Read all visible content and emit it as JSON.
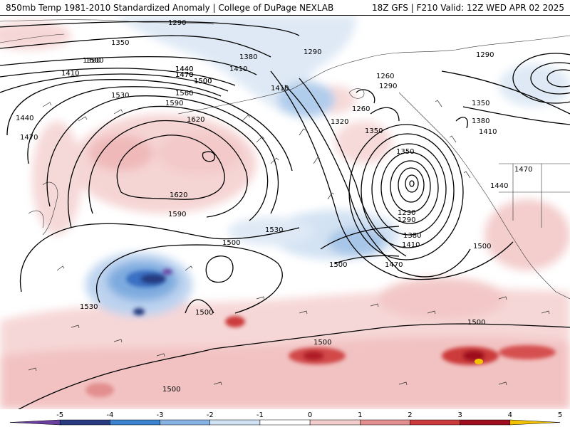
{
  "header": {
    "title_left": "850mb Temp 1981-2010 Standardized Anomaly | College of DuPage NEXLAB",
    "title_right": "18Z GFS | F210 Valid: 12Z WED APR 02 2025"
  },
  "contour_labels": [
    "1290",
    "1350",
    "1380",
    "1410",
    "1440",
    "1470",
    "1500",
    "1530",
    "1560",
    "1590",
    "1620",
    "1410",
    "1440",
    "1470",
    "1500",
    "1380",
    "1410",
    "1290",
    "1260",
    "1290",
    "1260",
    "1320",
    "1350",
    "1350",
    "1230",
    "1290",
    "1380",
    "1410",
    "1470",
    "1500",
    "1500",
    "1530",
    "1590",
    "1620",
    "1500",
    "1530",
    "1500",
    "1500",
    "1500",
    "1500",
    "1290",
    "1350",
    "1380",
    "1410",
    "1440",
    "1470",
    "1500",
    "1440",
    "1470"
  ],
  "colorbar": {
    "ticks": [
      "-5",
      "-4",
      "-3",
      "-2",
      "-1",
      "0",
      "1",
      "2",
      "3",
      "4",
      "5"
    ],
    "colors": [
      "#6a3fa0",
      "#283a80",
      "#3b82d1",
      "#86b3e3",
      "#cfe0f2",
      "#ffffff",
      "#f3cccc",
      "#e38f8f",
      "#cc3b3b",
      "#9e0e1e",
      "#f2c200"
    ]
  }
}
